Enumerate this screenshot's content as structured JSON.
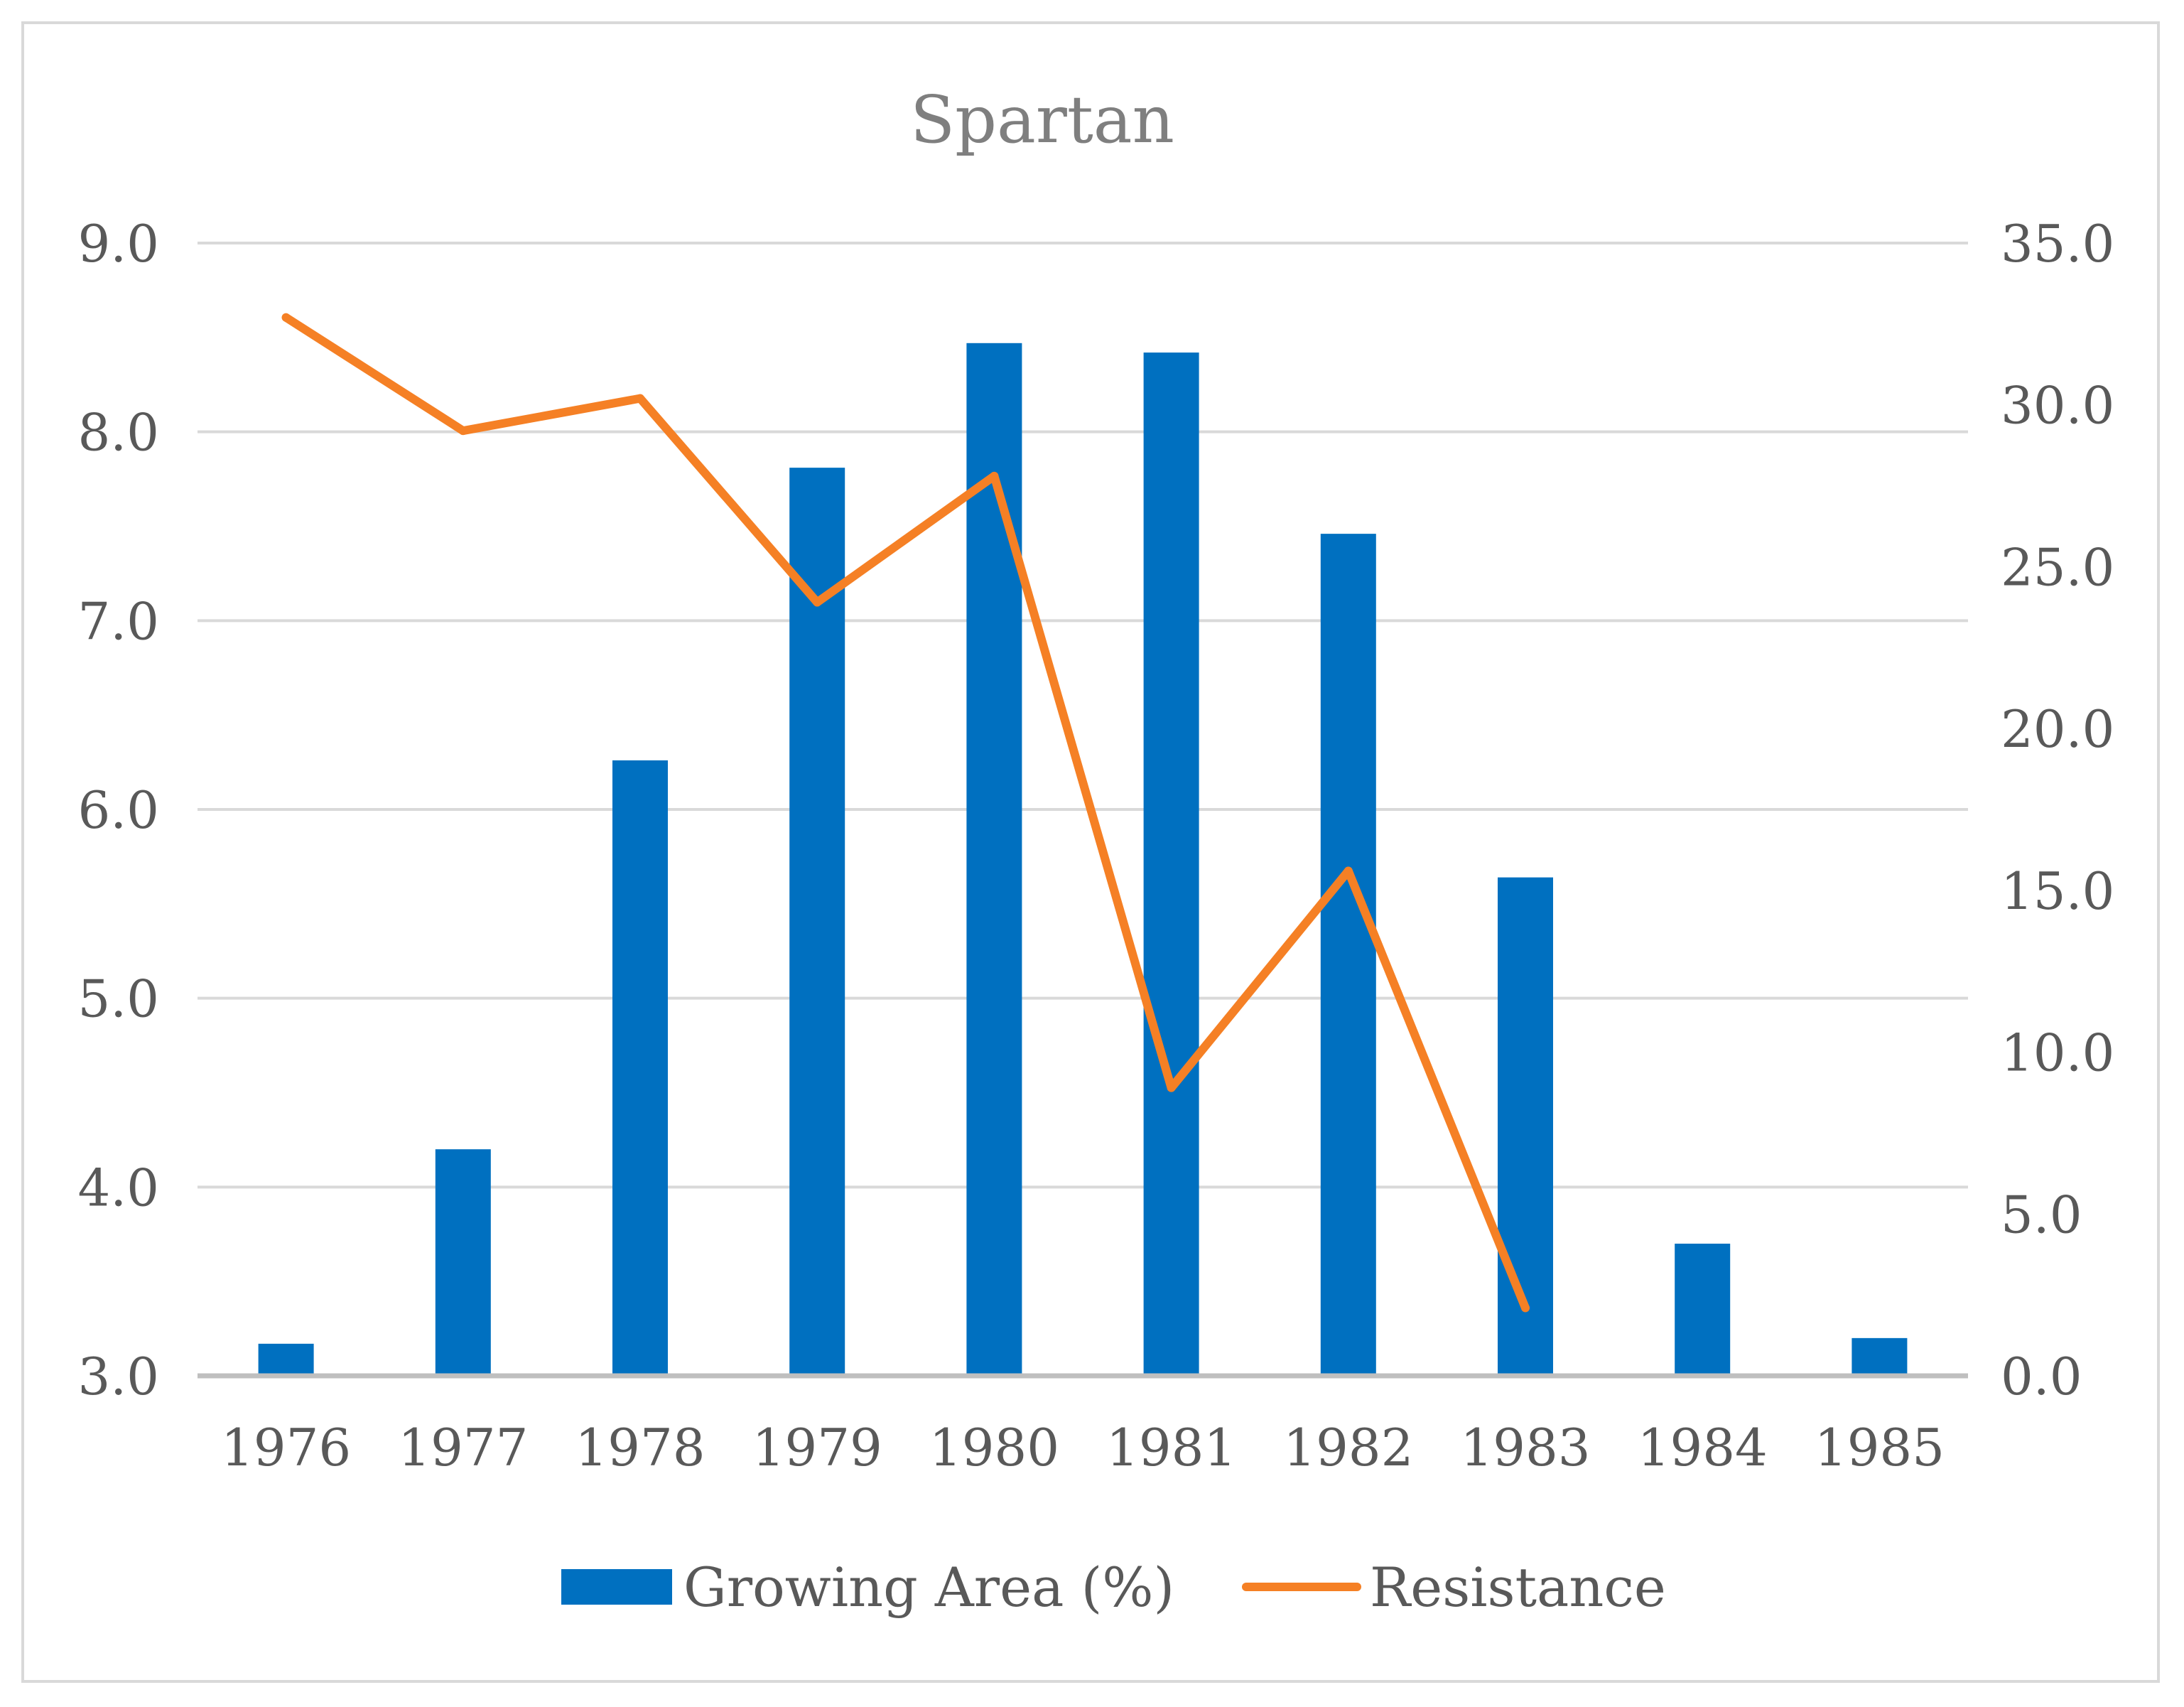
{
  "chart_data": {
    "type": "bar",
    "title": "Spartan",
    "categories": [
      "1976",
      "1977",
      "1978",
      "1979",
      "1980",
      "1981",
      "1982",
      "1983",
      "1984",
      "1985"
    ],
    "series": [
      {
        "name": "Growing Area (%)",
        "type": "bar",
        "axis": "left",
        "color": "#0070c0",
        "values": [
          3.17,
          4.2,
          6.26,
          7.81,
          8.47,
          8.42,
          7.46,
          5.64,
          3.7,
          3.2
        ]
      },
      {
        "name": "Resistance",
        "type": "line",
        "axis": "right",
        "color": "#f58025",
        "values": [
          32.7,
          29.2,
          30.2,
          23.9,
          27.8,
          8.9,
          15.6,
          2.1,
          null,
          null
        ]
      }
    ],
    "left_axis": {
      "min": 3.0,
      "max": 9.0,
      "step": 1.0,
      "ticks": [
        "3.0",
        "4.0",
        "5.0",
        "6.0",
        "7.0",
        "8.0",
        "9.0"
      ]
    },
    "right_axis": {
      "min": 0.0,
      "max": 35.0,
      "step": 5.0,
      "ticks": [
        "0.0",
        "5.0",
        "10.0",
        "15.0",
        "20.0",
        "25.0",
        "30.0",
        "35.0"
      ]
    },
    "xlabel": "",
    "ylabel": "",
    "grid": true,
    "legend_position": "bottom",
    "colors": {
      "gridline": "#d9d9d9",
      "axis_line": "#bfbfbf",
      "text": "#595959",
      "title": "#7f7f7f"
    }
  }
}
